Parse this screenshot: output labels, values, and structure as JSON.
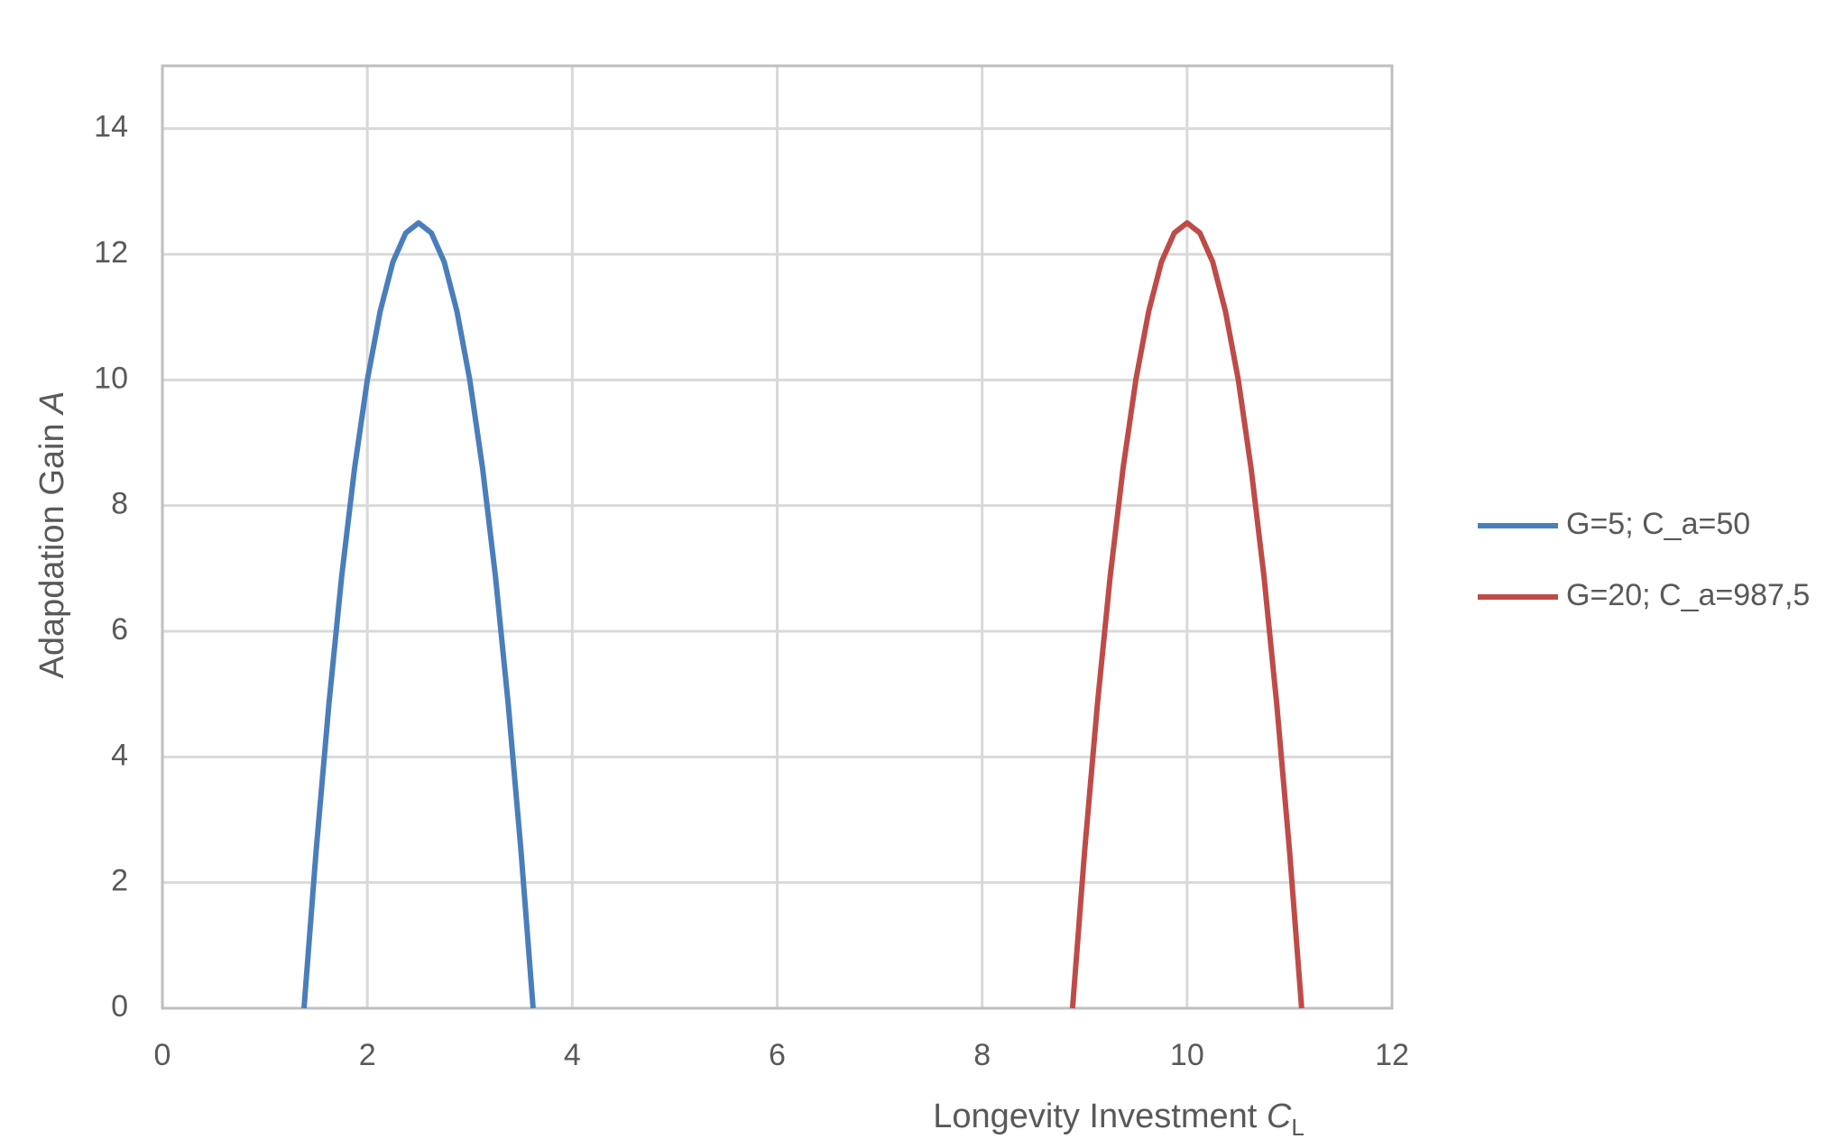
{
  "chart_data": {
    "type": "line",
    "xlabel": "Longevity Investment",
    "xlabel_symbol": "C",
    "xlabel_subscript": "L",
    "ylabel": "Adapdation Gain",
    "ylabel_symbol": "A",
    "xlim": [
      0,
      12
    ],
    "xticks": [
      0,
      2,
      4,
      6,
      8,
      10,
      12
    ],
    "ylim": [
      0,
      15
    ],
    "yticks": [
      0,
      2,
      4,
      6,
      8,
      10,
      12,
      14
    ],
    "grid": true,
    "legend": "right",
    "series": [
      {
        "name": "G=5; C_a=50",
        "color": "#4a7ebb",
        "x": [
          1.382,
          1.5,
          1.625,
          1.75,
          1.875,
          2,
          2.125,
          2.25,
          2.375,
          2.5,
          2.625,
          2.75,
          2.875,
          3,
          3.125,
          3.25,
          3.375,
          3.5,
          3.618
        ],
        "values": [
          0,
          2.5,
          4.84,
          6.88,
          8.59,
          10,
          11.09,
          11.88,
          12.34,
          12.5,
          12.34,
          11.88,
          11.09,
          10,
          8.59,
          6.88,
          4.84,
          2.5,
          0
        ]
      },
      {
        "name": "G=20; C_a=987,5",
        "color": "#be4b48",
        "x": [
          8.882,
          9,
          9.125,
          9.25,
          9.375,
          9.5,
          9.625,
          9.75,
          9.875,
          10,
          10.125,
          10.25,
          10.375,
          10.5,
          10.625,
          10.75,
          10.875,
          11,
          11.118
        ],
        "values": [
          0,
          2.5,
          4.84,
          6.88,
          8.59,
          10,
          11.09,
          11.88,
          12.34,
          12.5,
          12.34,
          11.88,
          11.09,
          10,
          8.59,
          6.88,
          4.84,
          2.5,
          0
        ]
      }
    ]
  }
}
